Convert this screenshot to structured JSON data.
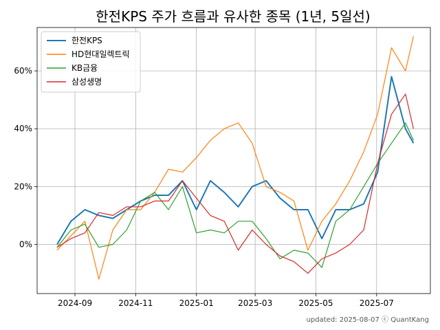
{
  "chart_data": {
    "type": "line",
    "title": "한전KPS 주가 흐름과 유사한 종목 (1년, 5일선)",
    "xlabel": "",
    "ylabel": "",
    "x_ticks": [
      "2024-09",
      "2024-11",
      "2025-01",
      "2025-03",
      "2025-05",
      "2025-07"
    ],
    "y_ticks": [
      "0%",
      "20%",
      "40%",
      "60%"
    ],
    "ylim": [
      -17,
      75
    ],
    "grid": true,
    "legend_position": "top-left",
    "x": [
      "2024-08-14",
      "2024-08-28",
      "2024-09-11",
      "2024-09-25",
      "2024-10-09",
      "2024-10-23",
      "2024-11-06",
      "2024-11-20",
      "2024-12-04",
      "2024-12-18",
      "2025-01-01",
      "2025-01-15",
      "2025-01-29",
      "2025-02-12",
      "2025-02-26",
      "2025-03-12",
      "2025-03-26",
      "2025-04-09",
      "2025-04-23",
      "2025-05-07",
      "2025-05-21",
      "2025-06-04",
      "2025-06-18",
      "2025-07-02",
      "2025-07-16",
      "2025-07-30",
      "2025-08-07"
    ],
    "series": [
      {
        "name": "한전KPS",
        "color": "#1f77b4",
        "values": [
          0,
          8,
          12,
          10,
          9,
          12,
          15,
          17,
          17,
          22,
          12,
          22,
          18,
          13,
          20,
          22,
          16,
          12,
          12,
          2,
          12,
          12,
          14,
          25,
          58,
          40,
          35
        ]
      },
      {
        "name": "HD현대일렉트릭",
        "color": "#ff7f0e",
        "values": [
          -2,
          3,
          8,
          -12,
          5,
          12,
          12,
          18,
          26,
          25,
          30,
          36,
          40,
          42,
          35,
          20,
          18,
          15,
          -2,
          8,
          14,
          22,
          32,
          45,
          68,
          60,
          72
        ]
      },
      {
        "name": "KB금융",
        "color": "#2ca02c",
        "values": [
          -1,
          5,
          7,
          -1,
          0,
          5,
          15,
          18,
          12,
          20,
          4,
          5,
          4,
          8,
          8,
          2,
          -5,
          -2,
          -3,
          -8,
          8,
          12,
          20,
          28,
          35,
          42,
          36
        ]
      },
      {
        "name": "삼성생명",
        "color": "#d62728",
        "values": [
          -1,
          2,
          4,
          11,
          10,
          13,
          13,
          15,
          15,
          22,
          16,
          10,
          8,
          -2,
          5,
          0,
          -4,
          -6,
          -10,
          -5,
          -3,
          0,
          5,
          28,
          45,
          52,
          40
        ]
      }
    ]
  },
  "footer": "updated: 2025-08-07 ⓒ QuantKang"
}
